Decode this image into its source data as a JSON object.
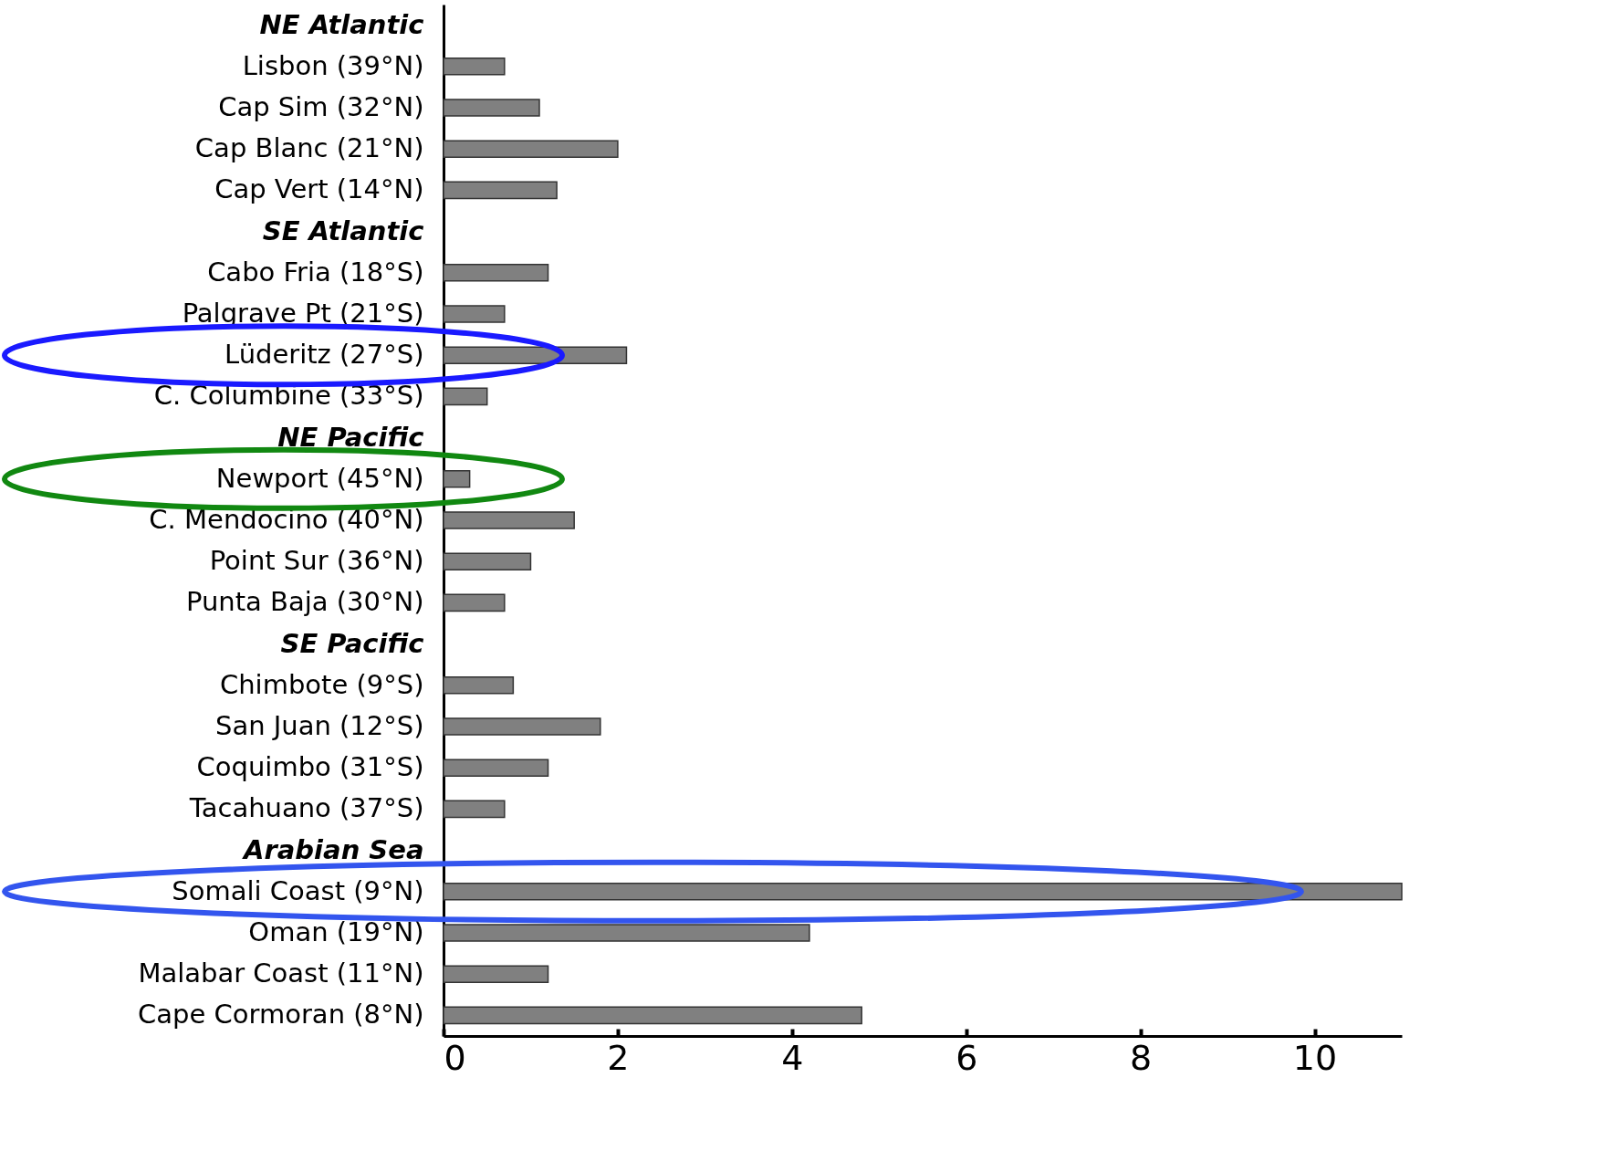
{
  "chart_data": {
    "type": "bar",
    "orientation": "horizontal",
    "categories": [
      "NE Atlantic",
      "Lisbon (39°N)",
      "Cap Sim (32°N)",
      "Cap Blanc (21°N)",
      "Cap Vert (14°N)",
      "SE Atlantic",
      "Cabo Fria (18°S)",
      "Palgrave Pt (21°S)",
      "Lüderitz (27°S)",
      "C. Columbine (33°S)",
      "NE Pacific",
      "Newport (45°N)",
      "C. Mendocino (40°N)",
      "Point Sur (36°N)",
      "Punta Baja (30°N)",
      "SE Pacific",
      "Chimbote (9°S)",
      "San Juan (12°S)",
      "Coquimbo (31°S)",
      "Tacahuano (37°S)",
      "Arabian Sea",
      "Somali Coast (9°N)",
      "Oman (19°N)",
      "Malabar Coast (11°N)",
      "Cape Cormoran (8°N)"
    ],
    "values": [
      null,
      0.7,
      1.1,
      2.0,
      1.3,
      null,
      1.2,
      0.7,
      2.1,
      0.5,
      null,
      0.3,
      1.5,
      1.0,
      0.7,
      null,
      0.8,
      1.8,
      1.2,
      0.7,
      null,
      11.0,
      4.2,
      1.2,
      4.8
    ],
    "color": "#808080",
    "xlim": [
      0,
      11
    ],
    "xticks": [
      0,
      2,
      4,
      6,
      8,
      10
    ],
    "grid": false
  }
}
